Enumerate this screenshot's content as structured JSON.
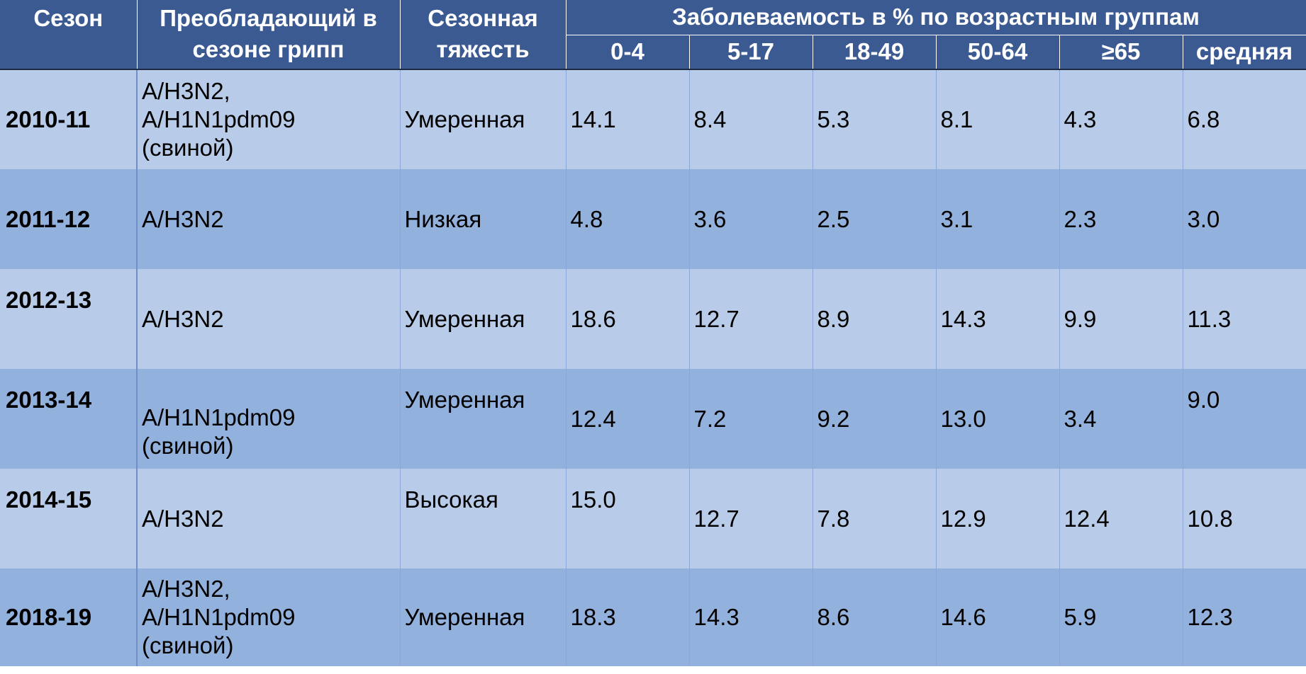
{
  "header": {
    "season": "Сезон",
    "strain_line1": "Преобладающий в",
    "strain_line2": "сезоне грипп",
    "severity_line1": "Сезонная",
    "severity_line2": "тяжесть",
    "incidence": "Заболеваемость в % по возрастным группам",
    "age_groups": [
      "0-4",
      "5-17",
      "18-49",
      "50-64",
      "≥65",
      "средняя"
    ]
  },
  "rows": [
    {
      "season": "2010-11",
      "strain_lines": [
        "A/H3N2,",
        "A/H1N1pdm09",
        "(свиной)"
      ],
      "severity": "Умеренная",
      "values": [
        "14.1",
        "8.4",
        "5.3",
        "8.1",
        "4.3",
        "6.8"
      ]
    },
    {
      "season": "2011-12",
      "strain_lines": [
        "A/H3N2"
      ],
      "severity": "Низкая",
      "values": [
        "4.8",
        "3.6",
        "2.5",
        "3.1",
        "2.3",
        "3.0"
      ]
    },
    {
      "season": "2012-13",
      "strain_lines": [
        "A/H3N2"
      ],
      "severity": "Умеренная",
      "values": [
        "18.6",
        "12.7",
        "8.9",
        "14.3",
        "9.9",
        "11.3"
      ]
    },
    {
      "season": "2013-14",
      "strain_lines": [
        "A/H1N1pdm09",
        "(свиной)"
      ],
      "severity": "Умеренная",
      "values": [
        "12.4",
        "7.2",
        "9.2",
        "13.0",
        "3.4",
        "9.0"
      ]
    },
    {
      "season": "2014-15",
      "strain_lines": [
        "A/H3N2"
      ],
      "severity": "Высокая",
      "values": [
        "15.0",
        "12.7",
        "7.8",
        "12.9",
        "12.4",
        "10.8"
      ]
    },
    {
      "season": "2018-19",
      "strain_lines": [
        "A/H3N2,",
        "A/H1N1pdm09",
        "(свиной)"
      ],
      "severity": "Умеренная",
      "values": [
        "18.3",
        "14.3",
        "8.6",
        "14.6",
        "5.9",
        "12.3"
      ]
    }
  ]
}
